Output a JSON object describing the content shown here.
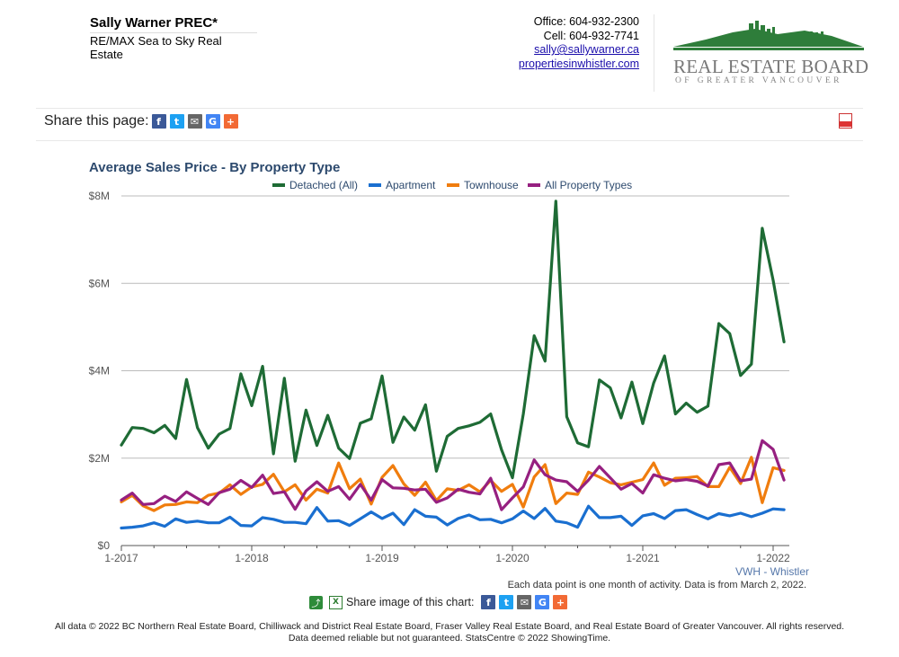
{
  "header": {
    "agent_name": "Sally Warner PREC*",
    "agent_company": "RE/MAX Sea to Sky Real Estate",
    "office": "Office: 604-932-2300",
    "cell": "Cell: 604-932-7741",
    "email": "sally@sallywarner.ca",
    "website": "propertiesinwhistler.com",
    "logo_title": "REAL ESTATE BOARD",
    "logo_subtitle": "OF GREATER VANCOUVER"
  },
  "share": {
    "label": "Share this page:",
    "icons": [
      "facebook-icon",
      "twitter-icon",
      "email-icon",
      "google-icon",
      "plus-icon"
    ],
    "pdf_icon": "pdf-icon"
  },
  "chart_share": {
    "label": "Share image of this chart:"
  },
  "region": "VWH - Whistler",
  "note": "Each data point is one month of activity. Data is from March 2, 2022.",
  "footer": {
    "line1": "All data © 2022 BC Northern Real Estate Board, Chilliwack and District Real Estate Board, Fraser Valley Real Estate Board, and Real Estate Board of Greater Vancouver. All rights reserved.",
    "line2": "Data deemed reliable but not guaranteed. StatsCentre © 2022 ShowingTime."
  },
  "colors": {
    "detached": "#1e6b35",
    "apartment": "#1a6fd0",
    "townhouse": "#f07d0e",
    "all": "#962080",
    "title": "#2d4a6e",
    "grid": "#bbbbbb"
  },
  "chart_data": {
    "type": "line",
    "title": "Average Sales Price - By Property Type",
    "x_start": "1-2017",
    "x_end": "2-2022",
    "x_ticks": [
      "1-2017",
      "1-2018",
      "1-2019",
      "1-2020",
      "1-2021",
      "1-2022"
    ],
    "y_ticks": [
      "$0",
      "$2M",
      "$4M",
      "$6M",
      "$8M"
    ],
    "ylim": [
      0,
      8000000
    ],
    "grid": true,
    "legend_position": "top",
    "series": [
      {
        "name": "Detached (All)",
        "color_key": "detached",
        "values": [
          2300000,
          2700000,
          2680000,
          2580000,
          2750000,
          2450000,
          3800000,
          2700000,
          2230000,
          2550000,
          2680000,
          3930000,
          3200000,
          4100000,
          2100000,
          3830000,
          1930000,
          3100000,
          2290000,
          2980000,
          2230000,
          1990000,
          2800000,
          2900000,
          3880000,
          2360000,
          2940000,
          2640000,
          3220000,
          1700000,
          2500000,
          2680000,
          2740000,
          2820000,
          3010000,
          2190000,
          1550000,
          3010000,
          4800000,
          4220000,
          7880000,
          2950000,
          2350000,
          2260000,
          3790000,
          3610000,
          2920000,
          3740000,
          2790000,
          3720000,
          4340000,
          3010000,
          3260000,
          3050000,
          3190000,
          5080000,
          4850000,
          3890000,
          4150000,
          7260000,
          6070000,
          4660000
        ]
      },
      {
        "name": "Apartment",
        "color_key": "apartment",
        "values": [
          400000,
          420000,
          450000,
          520000,
          440000,
          610000,
          530000,
          560000,
          520000,
          520000,
          650000,
          460000,
          450000,
          640000,
          600000,
          530000,
          530000,
          500000,
          870000,
          560000,
          570000,
          460000,
          610000,
          770000,
          620000,
          740000,
          480000,
          820000,
          670000,
          650000,
          470000,
          620000,
          700000,
          590000,
          600000,
          520000,
          610000,
          790000,
          620000,
          850000,
          560000,
          520000,
          420000,
          900000,
          640000,
          640000,
          670000,
          460000,
          680000,
          730000,
          620000,
          800000,
          820000,
          710000,
          610000,
          730000,
          680000,
          740000,
          660000,
          740000,
          840000,
          820000
        ]
      },
      {
        "name": "Townhouse",
        "color_key": "townhouse",
        "values": [
          1000000,
          1150000,
          910000,
          800000,
          930000,
          940000,
          1000000,
          980000,
          1150000,
          1200000,
          1390000,
          1170000,
          1340000,
          1400000,
          1630000,
          1230000,
          1390000,
          1040000,
          1290000,
          1200000,
          1890000,
          1300000,
          1520000,
          950000,
          1560000,
          1830000,
          1410000,
          1150000,
          1450000,
          1030000,
          1300000,
          1260000,
          1390000,
          1230000,
          1490000,
          1240000,
          1400000,
          880000,
          1570000,
          1850000,
          960000,
          1200000,
          1170000,
          1680000,
          1570000,
          1440000,
          1390000,
          1450000,
          1510000,
          1890000,
          1380000,
          1540000,
          1550000,
          1580000,
          1350000,
          1350000,
          1790000,
          1420000,
          2020000,
          980000,
          1780000,
          1720000
        ]
      },
      {
        "name": "All Property Types",
        "color_key": "all",
        "values": [
          1040000,
          1200000,
          940000,
          960000,
          1130000,
          1010000,
          1230000,
          1080000,
          940000,
          1210000,
          1290000,
          1490000,
          1330000,
          1610000,
          1190000,
          1230000,
          830000,
          1250000,
          1460000,
          1240000,
          1350000,
          1060000,
          1400000,
          1040000,
          1510000,
          1320000,
          1310000,
          1270000,
          1290000,
          990000,
          1090000,
          1290000,
          1220000,
          1180000,
          1540000,
          820000,
          1090000,
          1340000,
          1960000,
          1620000,
          1500000,
          1460000,
          1240000,
          1500000,
          1810000,
          1550000,
          1290000,
          1420000,
          1200000,
          1620000,
          1540000,
          1480000,
          1510000,
          1470000,
          1360000,
          1850000,
          1890000,
          1480000,
          1520000,
          2400000,
          2200000,
          1500000
        ]
      }
    ]
  }
}
